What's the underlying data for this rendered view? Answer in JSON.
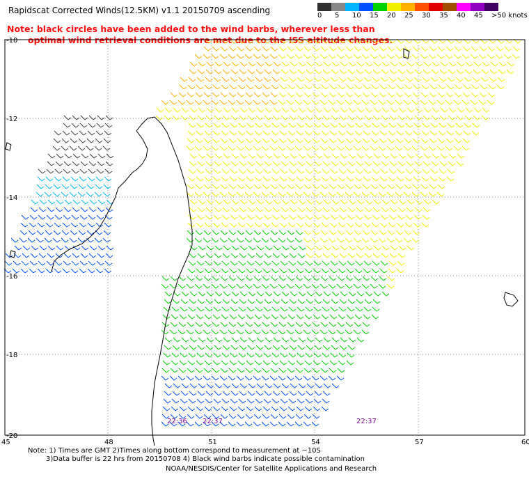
{
  "title": "Rapidscat Corrected Winds(12.5KM) v1.1 20150709 ascending",
  "note": {
    "line1": "Note: black circles have been added to the wind barbs, wherever less than",
    "line2": "optimal wind retrieval conditions are met due to the ISS altitude changes."
  },
  "legend": {
    "labels": [
      "0",
      "5",
      "10",
      "15",
      "20",
      "25",
      "30",
      "35",
      "40",
      "45",
      ">50 knots"
    ],
    "colors": [
      "#303030",
      "#888888",
      "#00b4ff",
      "#0050ff",
      "#00d000",
      "#f0f000",
      "#ffb000",
      "#ff5000",
      "#e00000",
      "#a05000",
      "#ff00ff",
      "#9000c0",
      "#400060"
    ]
  },
  "axes": {
    "lon_ticks": [
      "45",
      "48",
      "51",
      "54",
      "57",
      "60"
    ],
    "lat_ticks": [
      "-10",
      "-12",
      "-14",
      "-16",
      "-18",
      "-20"
    ]
  },
  "pass_times": [
    "22:36",
    "22:37",
    "22:37"
  ],
  "footer": {
    "line1": "Note: 1) Times are GMT 2)Times along bottom correspond to measurement at ~10S",
    "line2": "3)Data buffer is 22 hrs from 20150708 4) Black wind barbs indicate possible contamination",
    "line3": "NOAA/NESDIS/Center for Satellite Applications and Research"
  }
}
